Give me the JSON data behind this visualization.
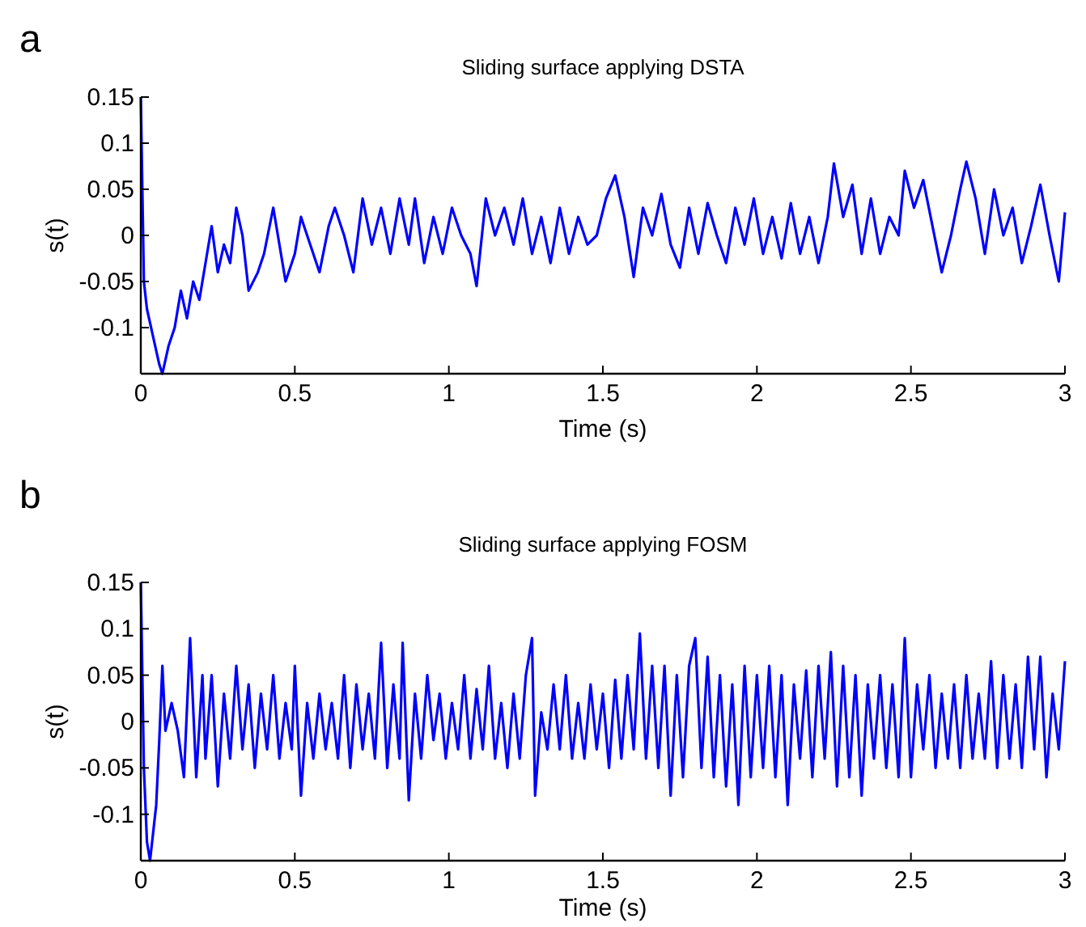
{
  "chart_data": [
    {
      "type": "line",
      "title": "Sliding surface applying DSTA",
      "xlabel": "Time (s)",
      "ylabel": "s(t)",
      "annotations": [
        "a"
      ],
      "xlim": [
        0,
        3
      ],
      "xticks": [
        0,
        0.5,
        1,
        1.5,
        2,
        2.5,
        3
      ],
      "ylim": [
        -0.15,
        0.15
      ],
      "yticks": [
        -0.1,
        -0.05,
        0,
        0.05,
        0.1,
        0.15
      ],
      "grid": false,
      "line_style": "solid",
      "marker": "none",
      "series": [
        {
          "color": "#0000ff",
          "x": [
            0,
            0.01,
            0.02,
            0.04,
            0.06,
            0.07,
            0.09,
            0.11,
            0.13,
            0.15,
            0.17,
            0.19,
            0.21,
            0.23,
            0.25,
            0.27,
            0.29,
            0.31,
            0.33,
            0.35,
            0.38,
            0.4,
            0.43,
            0.45,
            0.47,
            0.5,
            0.52,
            0.55,
            0.58,
            0.61,
            0.63,
            0.66,
            0.69,
            0.72,
            0.75,
            0.78,
            0.81,
            0.84,
            0.87,
            0.89,
            0.92,
            0.95,
            0.98,
            1.01,
            1.04,
            1.07,
            1.09,
            1.12,
            1.15,
            1.18,
            1.21,
            1.24,
            1.27,
            1.3,
            1.33,
            1.36,
            1.39,
            1.42,
            1.45,
            1.48,
            1.51,
            1.54,
            1.57,
            1.6,
            1.63,
            1.66,
            1.69,
            1.72,
            1.75,
            1.78,
            1.81,
            1.84,
            1.87,
            1.9,
            1.93,
            1.96,
            1.99,
            2.02,
            2.05,
            2.08,
            2.11,
            2.14,
            2.17,
            2.2,
            2.23,
            2.25,
            2.28,
            2.31,
            2.34,
            2.37,
            2.4,
            2.43,
            2.46,
            2.48,
            2.51,
            2.54,
            2.57,
            2.6,
            2.63,
            2.66,
            2.68,
            2.71,
            2.74,
            2.77,
            2.8,
            2.83,
            2.86,
            2.89,
            2.92,
            2.95,
            2.98,
            3
          ],
          "values": [
            0.15,
            -0.05,
            -0.08,
            -0.11,
            -0.14,
            -0.15,
            -0.12,
            -0.1,
            -0.06,
            -0.09,
            -0.05,
            -0.07,
            -0.03,
            0.01,
            -0.04,
            -0.01,
            -0.03,
            0.03,
            0,
            -0.06,
            -0.04,
            -0.02,
            0.03,
            -0.01,
            -0.05,
            -0.02,
            0.02,
            -0.01,
            -0.04,
            0.01,
            0.03,
            0,
            -0.04,
            0.04,
            -0.01,
            0.03,
            -0.02,
            0.04,
            -0.01,
            0.04,
            -0.03,
            0.02,
            -0.02,
            0.03,
            0,
            -0.02,
            -0.055,
            0.04,
            0,
            0.03,
            -0.01,
            0.04,
            -0.02,
            0.02,
            -0.03,
            0.03,
            -0.02,
            0.02,
            -0.01,
            0,
            0.04,
            0.065,
            0.02,
            -0.045,
            0.03,
            0,
            0.045,
            -0.01,
            -0.035,
            0.03,
            -0.02,
            0.035,
            0,
            -0.03,
            0.03,
            -0.01,
            0.04,
            -0.02,
            0.02,
            -0.025,
            0.035,
            -0.02,
            0.02,
            -0.03,
            0.02,
            0.078,
            0.02,
            0.055,
            -0.02,
            0.04,
            -0.02,
            0.02,
            0,
            0.07,
            0.03,
            0.06,
            0.01,
            -0.04,
            0,
            0.05,
            0.08,
            0.04,
            -0.02,
            0.05,
            0,
            0.03,
            -0.03,
            0.01,
            0.055,
            0,
            -0.05,
            0.025
          ]
        }
      ]
    },
    {
      "type": "line",
      "title": "Sliding surface applying FOSM",
      "xlabel": "Time (s)",
      "ylabel": "s(t)",
      "annotations": [
        "b"
      ],
      "xlim": [
        0,
        3
      ],
      "xticks": [
        0,
        0.5,
        1,
        1.5,
        2,
        2.5,
        3
      ],
      "ylim": [
        -0.15,
        0.15
      ],
      "yticks": [
        -0.1,
        -0.05,
        0,
        0.05,
        0.1,
        0.15
      ],
      "grid": false,
      "line_style": "solid",
      "marker": "none",
      "series": [
        {
          "color": "#0000ff",
          "x": [
            0,
            0.01,
            0.02,
            0.03,
            0.05,
            0.06,
            0.07,
            0.08,
            0.1,
            0.12,
            0.14,
            0.16,
            0.18,
            0.2,
            0.21,
            0.23,
            0.25,
            0.27,
            0.29,
            0.31,
            0.33,
            0.35,
            0.37,
            0.39,
            0.41,
            0.43,
            0.45,
            0.47,
            0.49,
            0.5,
            0.52,
            0.54,
            0.56,
            0.58,
            0.6,
            0.62,
            0.64,
            0.66,
            0.68,
            0.7,
            0.72,
            0.74,
            0.76,
            0.78,
            0.8,
            0.82,
            0.84,
            0.85,
            0.87,
            0.89,
            0.91,
            0.93,
            0.95,
            0.97,
            0.99,
            1.01,
            1.03,
            1.05,
            1.07,
            1.09,
            1.11,
            1.13,
            1.15,
            1.17,
            1.19,
            1.21,
            1.23,
            1.25,
            1.27,
            1.28,
            1.3,
            1.32,
            1.34,
            1.36,
            1.38,
            1.4,
            1.42,
            1.44,
            1.46,
            1.48,
            1.5,
            1.52,
            1.54,
            1.56,
            1.58,
            1.6,
            1.62,
            1.64,
            1.66,
            1.68,
            1.7,
            1.72,
            1.74,
            1.76,
            1.78,
            1.8,
            1.82,
            1.84,
            1.86,
            1.88,
            1.9,
            1.92,
            1.94,
            1.96,
            1.98,
            2,
            2.02,
            2.04,
            2.06,
            2.08,
            2.1,
            2.12,
            2.14,
            2.16,
            2.18,
            2.2,
            2.22,
            2.24,
            2.26,
            2.28,
            2.3,
            2.32,
            2.34,
            2.36,
            2.38,
            2.4,
            2.42,
            2.44,
            2.46,
            2.48,
            2.5,
            2.52,
            2.54,
            2.56,
            2.58,
            2.6,
            2.62,
            2.64,
            2.66,
            2.68,
            2.7,
            2.72,
            2.74,
            2.76,
            2.78,
            2.8,
            2.82,
            2.84,
            2.86,
            2.88,
            2.9,
            2.92,
            2.94,
            2.96,
            2.98,
            3
          ],
          "values": [
            0.15,
            -0.05,
            -0.13,
            -0.15,
            -0.09,
            -0.02,
            0.06,
            -0.01,
            0.02,
            -0.01,
            -0.06,
            0.09,
            -0.06,
            0.05,
            -0.04,
            0.05,
            -0.07,
            0.03,
            -0.04,
            0.06,
            -0.03,
            0.04,
            -0.05,
            0.03,
            -0.03,
            0.05,
            -0.04,
            0.02,
            -0.03,
            0.06,
            -0.08,
            0.02,
            -0.04,
            0.03,
            -0.03,
            0.02,
            -0.04,
            0.05,
            -0.05,
            0.04,
            -0.03,
            0.03,
            -0.04,
            0.085,
            -0.05,
            0.04,
            -0.04,
            0.085,
            -0.085,
            0.03,
            -0.04,
            0.05,
            -0.02,
            0.03,
            -0.04,
            0.02,
            -0.03,
            0.05,
            -0.04,
            0.035,
            -0.03,
            0.06,
            -0.04,
            0.02,
            -0.05,
            0.03,
            -0.04,
            0.05,
            0.09,
            -0.08,
            0.01,
            -0.03,
            0.04,
            -0.03,
            0.05,
            -0.04,
            0.02,
            -0.04,
            0.04,
            -0.03,
            0.03,
            -0.05,
            0.045,
            -0.04,
            0.05,
            -0.03,
            0.095,
            -0.04,
            0.06,
            -0.05,
            0.06,
            -0.08,
            0.05,
            -0.06,
            0.06,
            0.09,
            -0.05,
            0.07,
            -0.06,
            0.05,
            -0.07,
            0.04,
            -0.09,
            0.06,
            -0.06,
            0.05,
            -0.05,
            0.06,
            -0.06,
            0.05,
            -0.09,
            0.04,
            -0.04,
            0.055,
            -0.06,
            0.06,
            -0.04,
            0.075,
            -0.07,
            0.06,
            -0.06,
            0.05,
            -0.08,
            0.04,
            -0.04,
            0.05,
            -0.05,
            0.04,
            -0.06,
            0.09,
            -0.06,
            0.04,
            -0.03,
            0.05,
            -0.05,
            0.03,
            -0.04,
            0.04,
            -0.05,
            0.05,
            -0.04,
            0.03,
            -0.04,
            0.065,
            -0.05,
            0.05,
            -0.04,
            0.04,
            -0.05,
            0.07,
            -0.03,
            0.07,
            -0.06,
            0.03,
            -0.03,
            0.065
          ]
        }
      ]
    }
  ]
}
